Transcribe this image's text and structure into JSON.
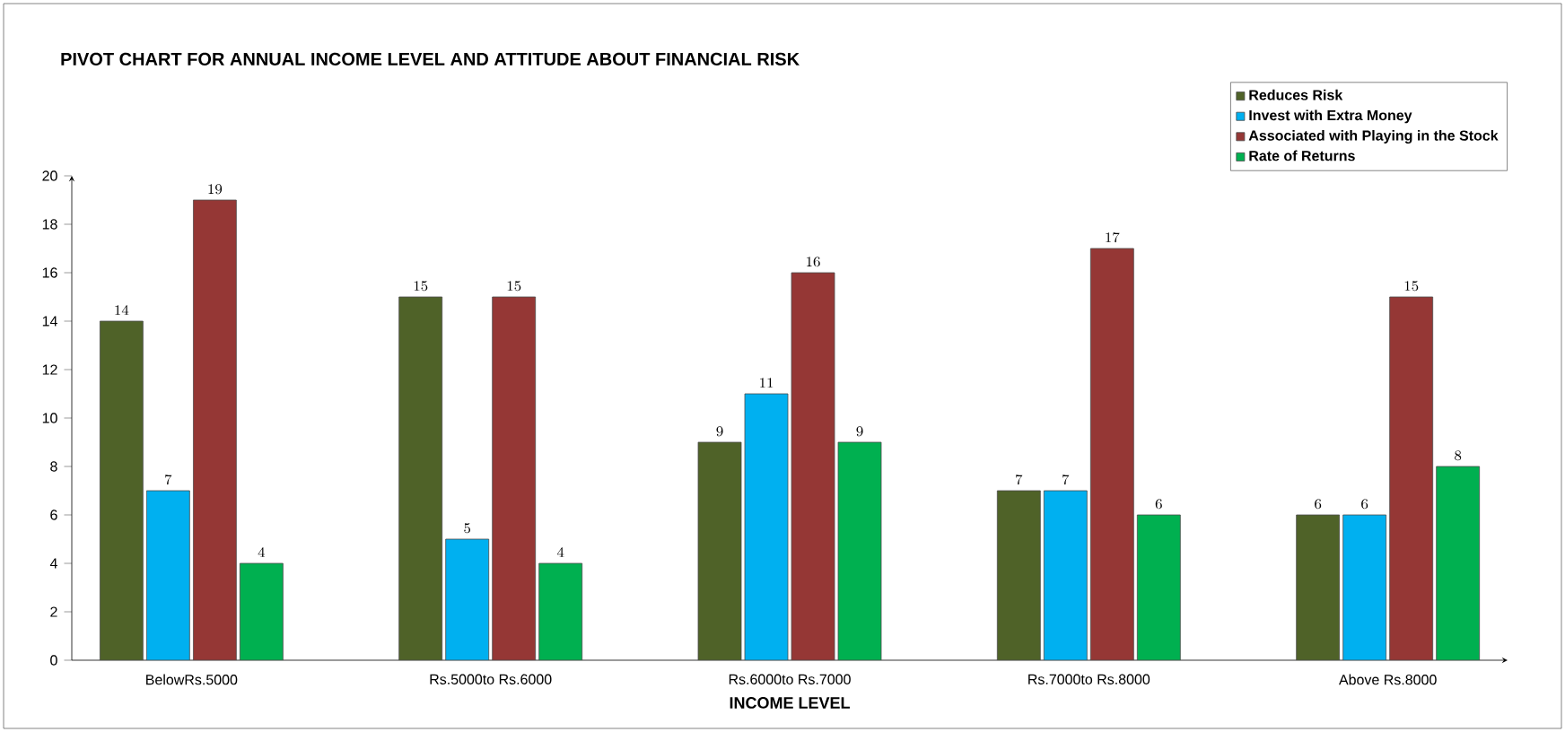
{
  "chart_data": {
    "type": "bar",
    "title": "PIVOT CHART FOR ANNUAL INCOME LEVEL AND ATTITUDE ABOUT FINANCIAL RISK",
    "xlabel": "INCOME LEVEL",
    "categories": [
      "BelowRs.5000",
      "Rs.5000to Rs.6000",
      "Rs.6000to Rs.7000",
      "Rs.7000to Rs.8000",
      "Above Rs.8000"
    ],
    "series": [
      {
        "name": "Reduces Risk",
        "color": "#4f6228",
        "values": [
          14,
          15,
          9,
          7,
          6
        ]
      },
      {
        "name": "Invest with Extra Money",
        "color": "#00b0f0",
        "values": [
          7,
          5,
          11,
          7,
          6
        ]
      },
      {
        "name": "Associated with Playing in the Stock",
        "color": "#953735",
        "values": [
          19,
          15,
          16,
          17,
          15
        ]
      },
      {
        "name": "Rate of Returns",
        "color": "#00b050",
        "values": [
          4,
          4,
          9,
          6,
          8
        ]
      }
    ],
    "ylim": [
      0,
      20
    ],
    "yticks": [
      0,
      2,
      4,
      6,
      8,
      10,
      12,
      14,
      16,
      18,
      20
    ],
    "data_labels": true,
    "legend": "top right"
  }
}
